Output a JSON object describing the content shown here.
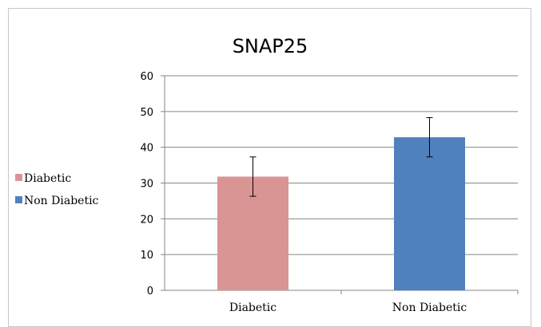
{
  "chart_data": {
    "type": "bar",
    "title": "SNAP25",
    "categories": [
      "Diabetic",
      "Non Diabetic"
    ],
    "series": [
      {
        "name": "Diabetic",
        "values": [
          31.8,
          null
        ],
        "errors": [
          5.5,
          null
        ],
        "color": "#d99594"
      },
      {
        "name": "Non Diabetic",
        "values": [
          null,
          42.8
        ],
        "errors": [
          null,
          5.5
        ],
        "color": "#4f81bd"
      }
    ],
    "values": [
      31.8,
      42.8
    ],
    "errors": [
      5.5,
      5.5
    ],
    "colors": [
      "#d99594",
      "#4f81bd"
    ],
    "ylim": [
      0,
      60
    ],
    "yticks": [
      0,
      10,
      20,
      30,
      40,
      50,
      60
    ],
    "grid": true,
    "legend": "left",
    "xlabel": "",
    "ylabel": ""
  }
}
